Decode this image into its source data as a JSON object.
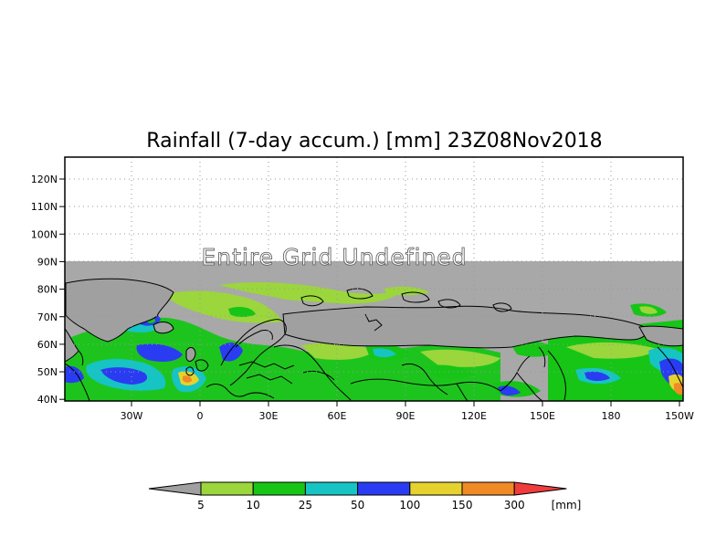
{
  "title": "Rainfall (7-day accum.) [mm] 23Z08Nov2018",
  "undefined_label": "Entire Grid Undefined",
  "lat_labels": [
    "120N",
    "110N",
    "100N",
    "90N",
    "80N",
    "70N",
    "60N",
    "50N",
    "40N"
  ],
  "lon_labels": [
    "30W",
    "0",
    "30E",
    "60E",
    "90E",
    "120E",
    "150E",
    "180",
    "150W"
  ],
  "colorbar": {
    "ticks": [
      "5",
      "10",
      "25",
      "50",
      "100",
      "150",
      "300"
    ],
    "unit": "[mm]",
    "colors": [
      "#9bd63c",
      "#16c516",
      "#16c4c4",
      "#2a3cf2",
      "#e6d22e",
      "#f08a26",
      "#f03c3c"
    ],
    "under_color": "#a0a0a0"
  },
  "colors": {
    "undefined_gray": "#a8a8a8",
    "land_gray": "#a0a0a0",
    "coast": "#000000"
  }
}
